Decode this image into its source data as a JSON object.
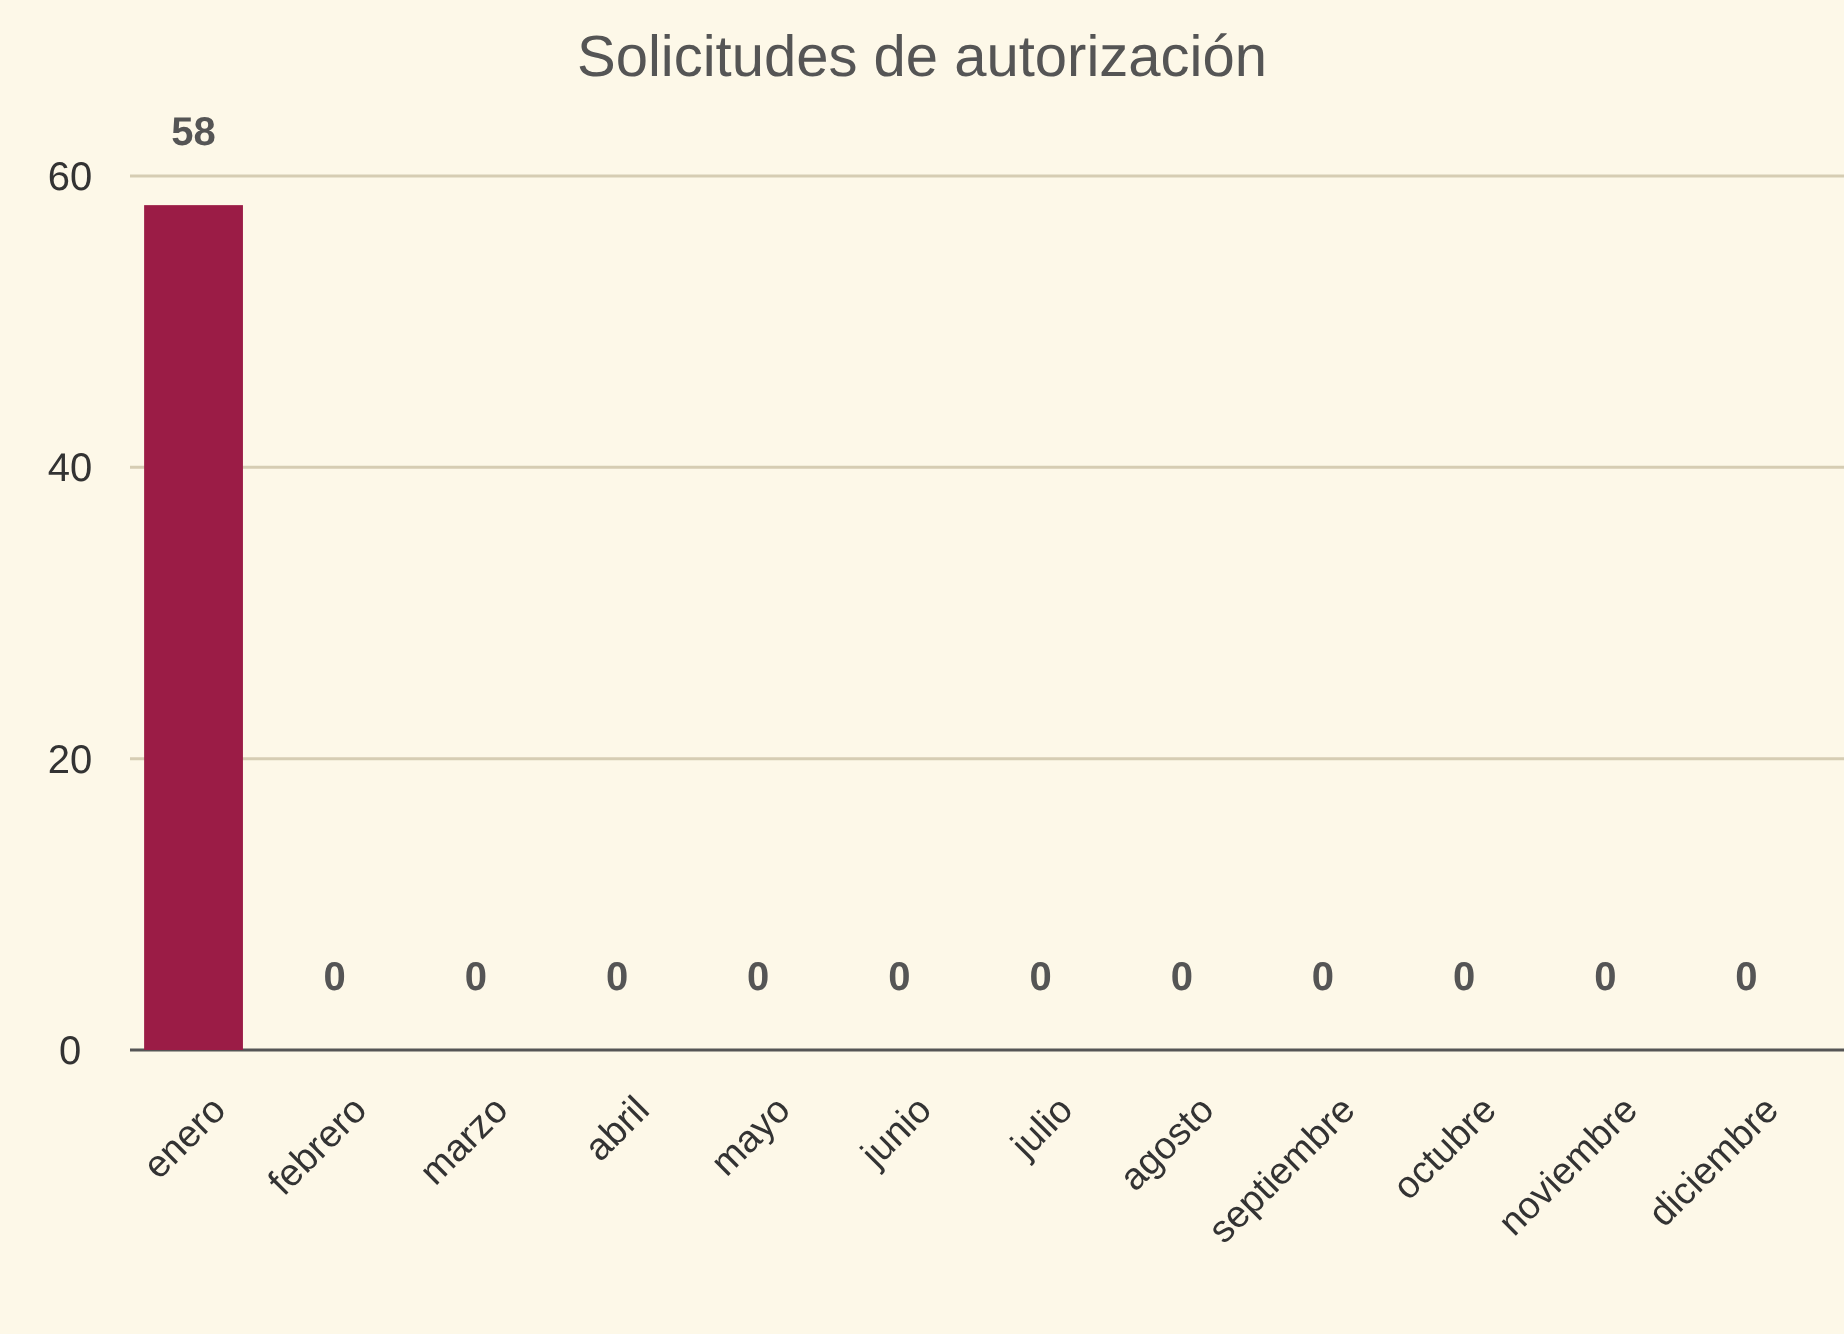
{
  "chart_data": {
    "type": "bar",
    "title": "Solicitudes de autorización",
    "categories": [
      "enero",
      "febrero",
      "marzo",
      "abril",
      "mayo",
      "junio",
      "julio",
      "agosto",
      "septiembre",
      "octubre",
      "noviembre",
      "diciembre"
    ],
    "values": [
      58,
      0,
      0,
      0,
      0,
      0,
      0,
      0,
      0,
      0,
      0,
      0
    ],
    "color": "#9b1c46",
    "ylim": [
      0,
      60
    ],
    "yticks": [
      0,
      20,
      40,
      60
    ],
    "grid": "y",
    "data_labels": true
  }
}
